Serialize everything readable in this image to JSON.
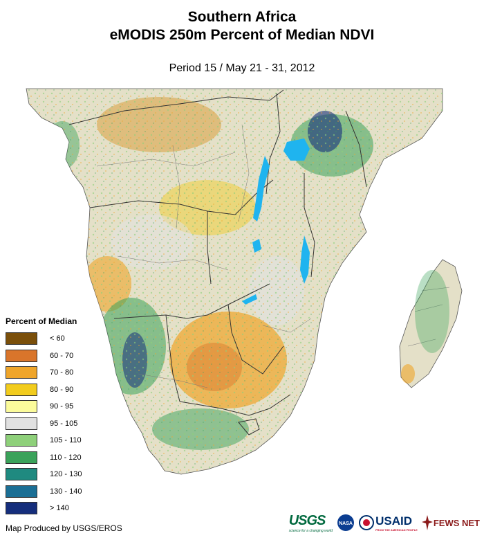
{
  "header": {
    "title_line1": "Southern Africa",
    "title_line2": "eMODIS 250m Percent of Median NDVI",
    "period": "Period 15 / May 21 - 31, 2012"
  },
  "legend": {
    "title": "Percent of Median",
    "items": [
      {
        "label": "< 60",
        "color": "#7a4f0a"
      },
      {
        "label": "60 - 70",
        "color": "#d9752b"
      },
      {
        "label": "70 - 80",
        "color": "#efa52a"
      },
      {
        "label": "80 - 90",
        "color": "#f2cc1d"
      },
      {
        "label": "90 - 95",
        "color": "#fbfb9b"
      },
      {
        "label": "95 - 105",
        "color": "#e1e1e1"
      },
      {
        "label": "105 - 110",
        "color": "#8ed07a"
      },
      {
        "label": "110 - 120",
        "color": "#3aa25a"
      },
      {
        "label": "120 - 130",
        "color": "#1f8a80"
      },
      {
        "label": "130 - 140",
        "color": "#1b6f95"
      },
      {
        "label": "> 140",
        "color": "#152e7c"
      }
    ]
  },
  "footer": {
    "credit": "Map Produced by USGS/EROS",
    "logos": {
      "usgs": "USGS",
      "usgs_tagline": "science for a changing world",
      "nasa": "NASA",
      "usaid": "USAID",
      "usaid_tagline": "FROM THE AMERICAN PEOPLE",
      "fewsnet": "FEWS NET"
    }
  }
}
